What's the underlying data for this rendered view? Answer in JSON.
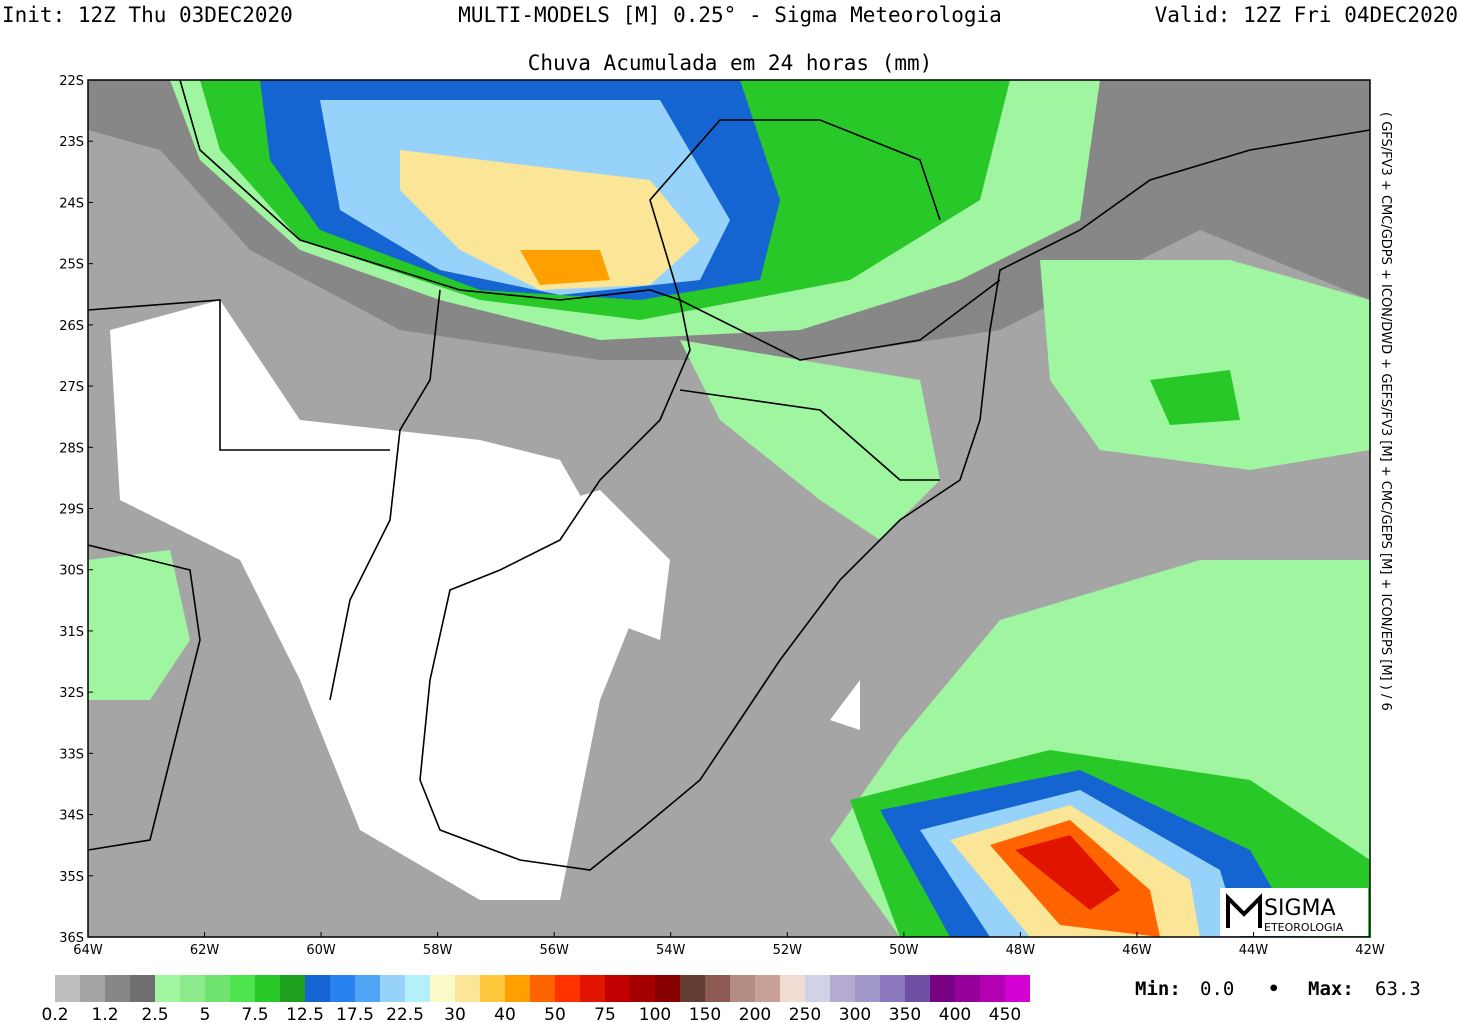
{
  "header": {
    "init": "Init: 12Z Thu 03DEC2020",
    "title": "MULTI-MODELS [M] 0.25° - Sigma Meteorologia",
    "valid": "Valid: 12Z Fri 04DEC2020",
    "subtitle": "Chuva Acumulada em 24 horas (mm)"
  },
  "map": {
    "lat_labels": [
      "22S",
      "23S",
      "24S",
      "25S",
      "26S",
      "27S",
      "28S",
      "29S",
      "30S",
      "31S",
      "32S",
      "33S",
      "34S",
      "35S",
      "36S"
    ],
    "lon_labels": [
      "64W",
      "62W",
      "60W",
      "58W",
      "56W",
      "54W",
      "52W",
      "50W",
      "48W",
      "46W",
      "44W",
      "42W"
    ],
    "side_text": "( GFS/FV3 + CMC/GDPS + ICON/DWD + GEFS/FV3 [M] + CMC/GEPS [M] + ICON/EPS [M] ) / 6",
    "logo": {
      "name": "SIGMA",
      "sub": "ETEOROLOGIA"
    }
  },
  "colorbar": {
    "colors": [
      "#bebebe",
      "#a5a5a5",
      "#878787",
      "#6e6e6e",
      "#a0f5a0",
      "#8ce98c",
      "#6ee36e",
      "#4ee44e",
      "#28c828",
      "#1ea01e",
      "#1464d2",
      "#2882f0",
      "#50a5f5",
      "#96d2fa",
      "#b4f0fa",
      "#fafac8",
      "#fae696",
      "#ffc83c",
      "#ffa000",
      "#ff6400",
      "#ff3200",
      "#e11400",
      "#c00000",
      "#a50000",
      "#870000",
      "#643c32",
      "#8c5a50",
      "#b48c82",
      "#c8a096",
      "#f0dcd2",
      "#d2d2e6",
      "#b4aad2",
      "#a096c8",
      "#8c78be",
      "#6e50a5",
      "#780082",
      "#96009b",
      "#b400b4",
      "#d200d2"
    ],
    "labels": [
      "0.2",
      "1.2",
      "2.5",
      "5",
      "7.5",
      "12.5",
      "17.5",
      "22.5",
      "30",
      "40",
      "50",
      "75",
      "100",
      "150",
      "200",
      "250",
      "300",
      "350",
      "400",
      "450"
    ]
  },
  "stats": {
    "min_label": "Min:",
    "min": "0.0",
    "separator": "•",
    "max_label": "Max:",
    "max": "63.3"
  }
}
